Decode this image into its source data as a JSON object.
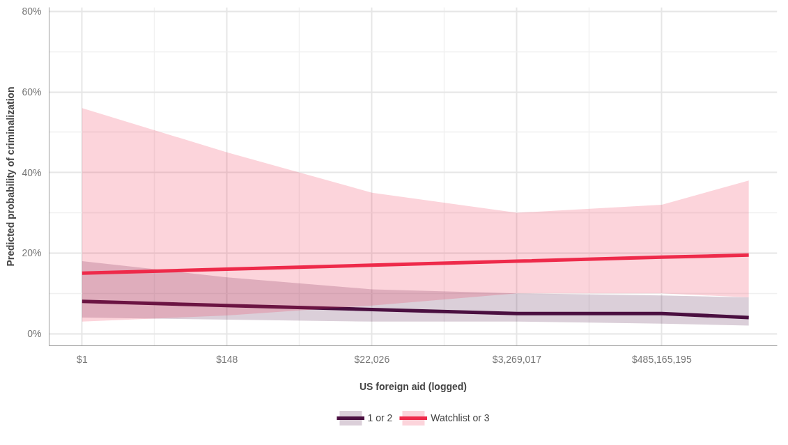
{
  "chart_data": {
    "type": "line",
    "xlabel": "US foreign aid (logged)",
    "ylabel": "Predicted probability of criminalization",
    "x": [
      1,
      148,
      22026,
      3269017,
      485165195,
      9744803446
    ],
    "series": [
      {
        "name": "1 or 2",
        "color": "#4a0f40",
        "values": [
          8,
          7,
          6,
          5,
          5,
          4
        ],
        "lower": [
          4,
          3.5,
          3,
          3,
          2.5,
          2
        ],
        "upper": [
          18,
          14,
          11,
          10,
          9.5,
          9
        ]
      },
      {
        "name": "Watchlist or 3",
        "color": "#ee2a4a",
        "values": [
          15,
          16,
          17,
          18,
          19,
          19.5
        ],
        "lower": [
          3,
          4.5,
          7,
          10,
          10,
          9
        ],
        "upper": [
          56,
          45,
          35,
          30,
          32,
          38
        ]
      }
    ],
    "log": "x",
    "xlim": [
      0.32,
      26000000000
    ],
    "xticks": [
      {
        "value": 1,
        "label": "$1"
      },
      {
        "value": 148,
        "label": "$148"
      },
      {
        "value": 22026,
        "label": "$22,026"
      },
      {
        "value": 3269017,
        "label": "$3,269,017"
      },
      {
        "value": 485165195,
        "label": "$485,165,195"
      }
    ],
    "ylim": [
      -3,
      81
    ],
    "yticks": [
      {
        "value": 0,
        "label": "0%"
      },
      {
        "value": 20,
        "label": "20%"
      },
      {
        "value": 40,
        "label": "40%"
      },
      {
        "value": 60,
        "label": "60%"
      },
      {
        "value": 80,
        "label": "80%"
      }
    ],
    "grid": true,
    "legend": "bottom",
    "line_style": "solid",
    "marker": "none"
  }
}
